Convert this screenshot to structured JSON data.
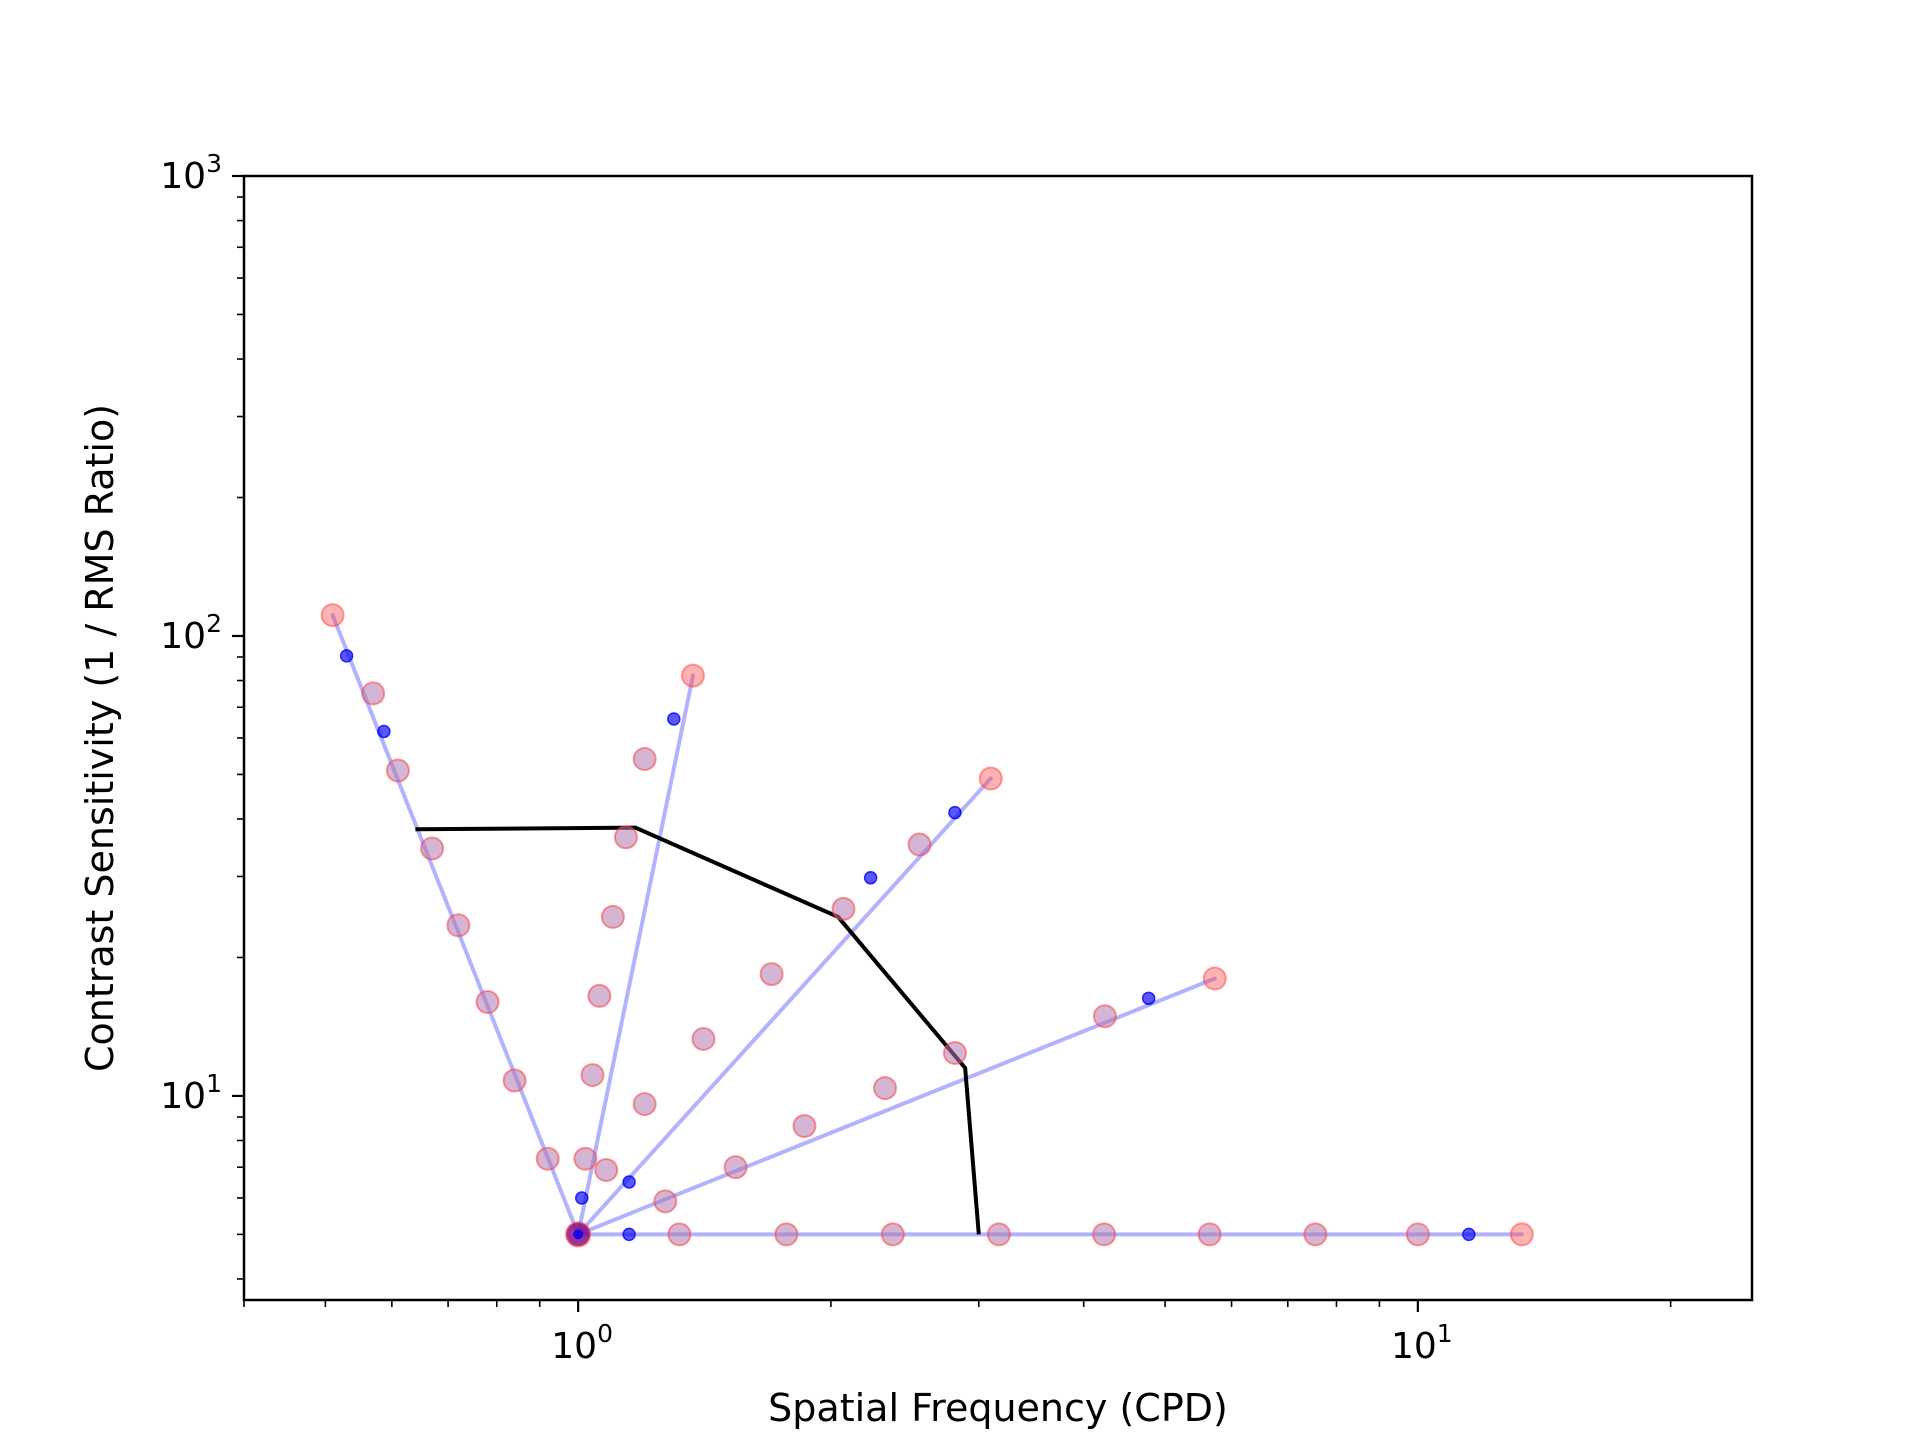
{
  "chart_data": {
    "type": "scatter",
    "title": "",
    "xlabel": "Spatial Frequency (CPD)",
    "ylabel": "Contrast Sensitivity (1 / RMS Ratio)",
    "xscale": "log",
    "yscale": "log",
    "xlim": [
      0.4,
      25
    ],
    "ylim": [
      3.6,
      1000
    ],
    "x_ticks": [
      {
        "value": 1,
        "base": "10",
        "exp": "0"
      },
      {
        "value": 10,
        "base": "10",
        "exp": "1"
      }
    ],
    "y_ticks": [
      {
        "value": 10,
        "base": "10",
        "exp": "1"
      },
      {
        "value": 100,
        "base": "10",
        "exp": "2"
      },
      {
        "value": 1000,
        "base": "10",
        "exp": "3"
      }
    ],
    "colors": {
      "ray_line": "#0000ff",
      "ray_alpha": 0.3,
      "blue_point": "#0000ff",
      "red_point": "#ff4040",
      "purple_point": "#b07ab0",
      "contour": "#000000",
      "origin": "#800080"
    },
    "origin": {
      "x": 1.0,
      "y": 5.0
    },
    "rays": [
      {
        "end": {
          "x": 0.51,
          "y": 111
        },
        "purple_points": [
          {
            "x": 0.92,
            "y": 7.3
          },
          {
            "x": 0.84,
            "y": 10.8
          },
          {
            "x": 0.78,
            "y": 16.0
          },
          {
            "x": 0.72,
            "y": 23.5
          },
          {
            "x": 0.67,
            "y": 34.5
          },
          {
            "x": 0.61,
            "y": 51
          },
          {
            "x": 0.57,
            "y": 75
          }
        ],
        "blue_points": [
          {
            "x": 0.53,
            "y": 90.5
          },
          {
            "x": 0.587,
            "y": 62
          }
        ],
        "red_points": [
          {
            "x": 0.51,
            "y": 111
          }
        ]
      },
      {
        "end": {
          "x": 1.37,
          "y": 82
        },
        "purple_points": [
          {
            "x": 1.02,
            "y": 7.3
          },
          {
            "x": 1.04,
            "y": 11.1
          },
          {
            "x": 1.06,
            "y": 16.5
          },
          {
            "x": 1.1,
            "y": 24.5
          },
          {
            "x": 1.14,
            "y": 36.5
          },
          {
            "x": 1.2,
            "y": 54
          }
        ],
        "blue_points": [
          {
            "x": 1.01,
            "y": 6.0
          },
          {
            "x": 1.3,
            "y": 66
          }
        ],
        "red_points": [
          {
            "x": 1.37,
            "y": 82
          }
        ]
      },
      {
        "end": {
          "x": 3.1,
          "y": 49
        },
        "purple_points": [
          {
            "x": 1.08,
            "y": 6.9
          },
          {
            "x": 1.2,
            "y": 9.6
          },
          {
            "x": 1.41,
            "y": 13.3
          },
          {
            "x": 1.7,
            "y": 18.4
          },
          {
            "x": 2.07,
            "y": 25.5
          },
          {
            "x": 2.55,
            "y": 35.2
          }
        ],
        "blue_points": [
          {
            "x": 2.23,
            "y": 29.8
          },
          {
            "x": 2.81,
            "y": 41.3
          }
        ],
        "red_points": [
          {
            "x": 3.1,
            "y": 49
          }
        ]
      },
      {
        "end": {
          "x": 5.73,
          "y": 18
        },
        "purple_points": [
          {
            "x": 1.27,
            "y": 5.9
          },
          {
            "x": 1.54,
            "y": 7.0
          },
          {
            "x": 1.86,
            "y": 8.6
          },
          {
            "x": 2.32,
            "y": 10.4
          },
          {
            "x": 2.81,
            "y": 12.4
          },
          {
            "x": 4.24,
            "y": 14.9
          }
        ],
        "blue_points": [
          {
            "x": 1.15,
            "y": 6.5
          },
          {
            "x": 4.78,
            "y": 16.3
          }
        ],
        "red_points": [
          {
            "x": 5.73,
            "y": 18
          }
        ]
      },
      {
        "end": {
          "x": 13.3,
          "y": 5.0
        },
        "purple_points": [
          {
            "x": 1.32,
            "y": 5.0
          },
          {
            "x": 1.77,
            "y": 5.0
          },
          {
            "x": 2.37,
            "y": 5.0
          },
          {
            "x": 3.17,
            "y": 5.0
          },
          {
            "x": 4.23,
            "y": 5.0
          },
          {
            "x": 5.65,
            "y": 5.0
          },
          {
            "x": 7.55,
            "y": 5.0
          },
          {
            "x": 10.0,
            "y": 5.0
          }
        ],
        "blue_points": [
          {
            "x": 1.15,
            "y": 5.0
          },
          {
            "x": 11.5,
            "y": 5.0
          }
        ],
        "red_points": [
          {
            "x": 13.3,
            "y": 5.0
          }
        ]
      }
    ],
    "contour": [
      {
        "x": 0.64,
        "y": 38
      },
      {
        "x": 1.17,
        "y": 38.3
      },
      {
        "x": 2.04,
        "y": 24.5
      },
      {
        "x": 2.89,
        "y": 11.5
      },
      {
        "x": 3.0,
        "y": 5.0
      }
    ]
  }
}
